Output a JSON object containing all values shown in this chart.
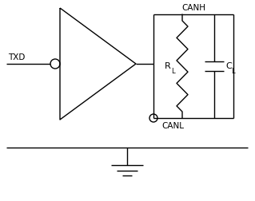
{
  "bg_color": "#ffffff",
  "line_color": "#000000",
  "txd_label": "TXD",
  "canh_label": "CANH",
  "canl_label": "CANL",
  "rl_label": "R",
  "rl_sub": "L",
  "cl_label": "C",
  "cl_sub": "L",
  "fig_width": 3.19,
  "fig_height": 2.52,
  "dpi": 100
}
